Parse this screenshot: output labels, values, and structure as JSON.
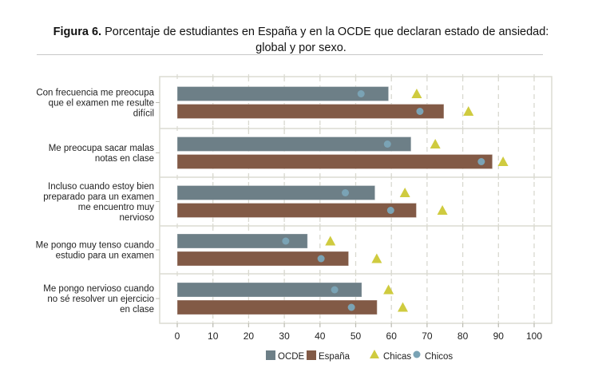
{
  "title": {
    "bold": "Figura 6.",
    "line1": " Porcentaje de estudiantes en España y en la OCDE que declaran estado de ansiedad:",
    "line2": "global y por sexo."
  },
  "colors": {
    "ocde": "#6d7f87",
    "espana": "#825a46",
    "chicas": "#cfcb3f",
    "chicos": "#7aa3b5",
    "grid": "#d9d9d0",
    "frame": "#dcdcd2"
  },
  "chart_data": {
    "type": "bar",
    "orientation": "horizontal",
    "title": "Porcentaje de estudiantes en España y en la OCDE que declaran estado de ansiedad: global y por sexo.",
    "xlabel": "",
    "ylabel": "",
    "xlim": [
      0,
      100
    ],
    "xticks": [
      0,
      10,
      20,
      30,
      40,
      50,
      60,
      70,
      80,
      90,
      100
    ],
    "grid": "vertical dashed",
    "legend_position": "bottom",
    "legend": [
      "OCDE",
      "España",
      "Chicas",
      "Chicos"
    ],
    "categories": [
      {
        "label": [
          "Con frecuencia me preocupa",
          "que el examen me resulte",
          "difícil"
        ],
        "groups": [
          {
            "name": "OCDE",
            "value": 59.2,
            "chicas": 67.1,
            "chicos": 51.5
          },
          {
            "name": "España",
            "value": 74.7,
            "chicas": 81.6,
            "chicos": 68.0
          }
        ]
      },
      {
        "label": [
          "Me preocupa sacar malas",
          "notas en clase"
        ],
        "groups": [
          {
            "name": "OCDE",
            "value": 65.5,
            "chicas": 72.3,
            "chicos": 58.9
          },
          {
            "name": "España",
            "value": 88.3,
            "chicas": 91.3,
            "chicos": 85.2
          }
        ]
      },
      {
        "label": [
          "Incluso cuando estoy bien",
          "preparado para un examen",
          "me encuentro muy",
          "nervioso"
        ],
        "groups": [
          {
            "name": "OCDE",
            "value": 55.4,
            "chicas": 63.8,
            "chicos": 47.1
          },
          {
            "name": "España",
            "value": 67.0,
            "chicas": 74.3,
            "chicos": 59.8
          }
        ]
      },
      {
        "label": [
          "Me pongo muy tenso cuando",
          "estudio para un examen"
        ],
        "groups": [
          {
            "name": "OCDE",
            "value": 36.5,
            "chicas": 42.9,
            "chicos": 30.4
          },
          {
            "name": "España",
            "value": 48.0,
            "chicas": 55.9,
            "chicos": 40.3
          }
        ]
      },
      {
        "label": [
          "Me pongo nervioso cuando",
          "no sé resolver un ejercicio",
          "en clase"
        ],
        "groups": [
          {
            "name": "OCDE",
            "value": 51.7,
            "chicas": 59.2,
            "chicos": 44.1
          },
          {
            "name": "España",
            "value": 56.0,
            "chicas": 63.2,
            "chicos": 48.8
          }
        ]
      }
    ]
  }
}
